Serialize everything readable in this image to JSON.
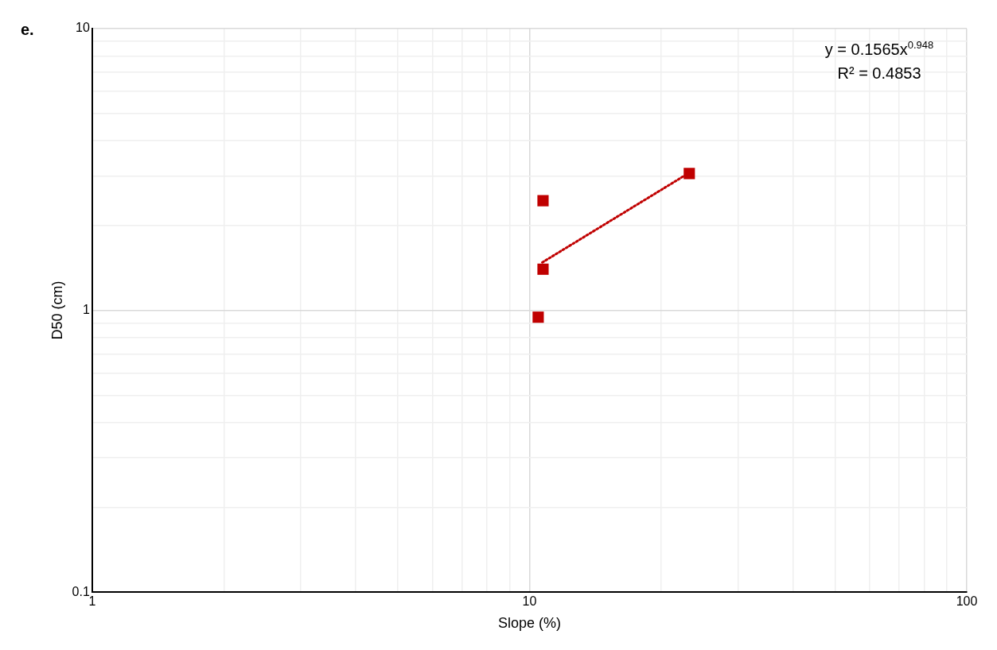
{
  "chart_data": {
    "type": "scatter",
    "xlabel": "Slope (%)",
    "ylabel": "D50 (cm)",
    "annotations": [
      "e.",
      "y = 0.1565x$^{0.948}$",
      "R² = 0.4853"
    ],
    "series": [
      {
        "color": "#c00000",
        "x": [
          10.74,
          10.74,
          10.47,
          23.2
        ],
        "values": [
          2.45,
          1.4,
          0.946,
          3.06
        ],
        "marker": "square"
      },
      {
        "type": "line",
        "color": "#c00000",
        "x": [
          10.7,
          23.2
        ],
        "values": [
          1.48,
          3.08
        ],
        "marker": "none",
        "line_style": "dotted"
      }
    ],
    "log": "xy",
    "xlim": [
      1,
      100
    ],
    "ylim": [
      0.1,
      10
    ],
    "xticks": [
      1,
      {
        "value": 2,
        "label": null
      },
      {
        "value": 3,
        "label": null
      },
      {
        "value": 4,
        "label": null
      },
      {
        "value": 5,
        "label": null
      },
      {
        "value": 6,
        "label": null
      },
      {
        "value": 7,
        "label": null
      },
      {
        "value": 8,
        "label": null
      },
      {
        "value": 9,
        "label": null
      },
      10,
      {
        "value": 20,
        "label": null
      },
      {
        "value": 30,
        "label": null
      },
      {
        "value": 40,
        "label": null
      },
      {
        "value": 50,
        "label": null
      },
      {
        "value": 60,
        "label": null
      },
      {
        "value": 70,
        "label": null
      },
      {
        "value": 80,
        "label": null
      },
      {
        "value": 90,
        "label": null
      },
      100
    ],
    "yticks": [
      0.1,
      {
        "value": 0.2,
        "label": null
      },
      {
        "value": 0.3,
        "label": null
      },
      {
        "value": 0.4,
        "label": null
      },
      {
        "value": 0.5,
        "label": null
      },
      {
        "value": 0.6,
        "label": null
      },
      {
        "value": 0.7,
        "label": null
      },
      {
        "value": 0.8,
        "label": null
      },
      {
        "value": 0.9,
        "label": null
      },
      1,
      {
        "value": 2,
        "label": null
      },
      {
        "value": 3,
        "label": null
      },
      {
        "value": 4,
        "label": null
      },
      {
        "value": 5,
        "label": null
      },
      {
        "value": 6,
        "label": null
      },
      {
        "value": 7,
        "label": null
      },
      {
        "value": 8,
        "label": null
      },
      {
        "value": 9,
        "label": null
      },
      10
    ],
    "grid": true,
    "legend": false
  }
}
